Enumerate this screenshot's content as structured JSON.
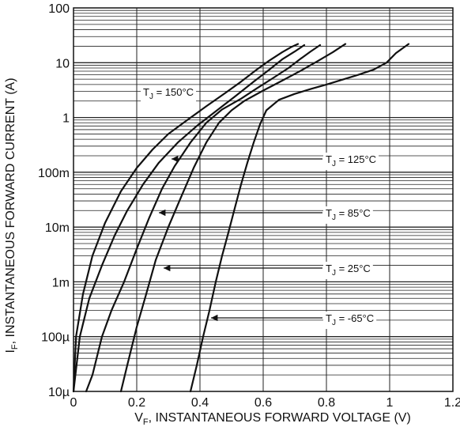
{
  "chart_data": {
    "type": "line",
    "xlabel": {
      "main": "V",
      "sub": "F",
      "rest": ", INSTANTANEOUS FORWARD VOLTAGE (V)"
    },
    "ylabel": {
      "main": "I",
      "sub": "F",
      "rest": ", INSTANTANEOUS FORWARD CURRENT (A)"
    },
    "xlim": [
      0,
      1.2
    ],
    "ylim": [
      1e-05,
      100
    ],
    "yscale": "log",
    "grid": true,
    "x_ticks": [
      {
        "value": 0,
        "label": "0"
      },
      {
        "value": 0.2,
        "label": "0.2"
      },
      {
        "value": 0.4,
        "label": "0.4"
      },
      {
        "value": 0.6,
        "label": "0.6"
      },
      {
        "value": 0.8,
        "label": "0.8"
      },
      {
        "value": 1.0,
        "label": "1"
      },
      {
        "value": 1.2,
        "label": "1.2"
      }
    ],
    "y_ticks": [
      {
        "value": 100,
        "label": "100"
      },
      {
        "value": 10,
        "label": "10"
      },
      {
        "value": 1,
        "label": "1"
      },
      {
        "value": 0.1,
        "label": "100m"
      },
      {
        "value": 0.01,
        "label": "10m"
      },
      {
        "value": 0.001,
        "label": "1m"
      },
      {
        "value": 0.0001,
        "label": "100µ"
      },
      {
        "value": 1e-05,
        "label": "10µ"
      }
    ],
    "series": [
      {
        "name": "TJ = 150°C",
        "label": {
          "base": "T",
          "sub": "J",
          "rest": " = 150°C"
        },
        "color": "#111111",
        "x": [
          0.0,
          0.008,
          0.03,
          0.06,
          0.1,
          0.15,
          0.2,
          0.25,
          0.3,
          0.36,
          0.42,
          0.48,
          0.53,
          0.58,
          0.62,
          0.66,
          0.69,
          0.71
        ],
        "y": [
          1e-05,
          0.0001,
          0.0006,
          0.003,
          0.012,
          0.045,
          0.12,
          0.26,
          0.5,
          0.9,
          1.6,
          2.8,
          4.5,
          7.5,
          11,
          15.5,
          19.5,
          22
        ]
      },
      {
        "name": "TJ = 125°C",
        "label": {
          "base": "T",
          "sub": "J",
          "rest": " = 125°C"
        },
        "color": "#111111",
        "x": [
          0.0,
          0.02,
          0.05,
          0.09,
          0.13,
          0.17,
          0.22,
          0.27,
          0.33,
          0.39,
          0.45,
          0.51,
          0.57,
          0.62,
          0.66,
          0.7,
          0.73
        ],
        "y": [
          1e-05,
          0.0001,
          0.0005,
          0.002,
          0.007,
          0.02,
          0.06,
          0.15,
          0.35,
          0.7,
          1.3,
          2.4,
          4.5,
          7.5,
          11.5,
          16,
          21
        ]
      },
      {
        "name": "TJ = 85°C",
        "label": {
          "base": "T",
          "sub": "J",
          "rest": " = 85°C"
        },
        "color": "#111111",
        "x": [
          0.04,
          0.06,
          0.09,
          0.12,
          0.16,
          0.2,
          0.24,
          0.28,
          0.32,
          0.37,
          0.42,
          0.47,
          0.53,
          0.58,
          0.63,
          0.68,
          0.72,
          0.75,
          0.78
        ],
        "y": [
          1e-05,
          2e-05,
          0.0001,
          0.0003,
          0.001,
          0.004,
          0.015,
          0.05,
          0.13,
          0.35,
          0.8,
          1.4,
          2.2,
          3.4,
          5.2,
          8.0,
          12,
          16,
          21
        ]
      },
      {
        "name": "TJ = 25°C",
        "label": {
          "base": "T",
          "sub": "J",
          "rest": " = 25°C"
        },
        "color": "#111111",
        "x": [
          0.15,
          0.17,
          0.2,
          0.23,
          0.26,
          0.3,
          0.34,
          0.38,
          0.42,
          0.46,
          0.5,
          0.54,
          0.6,
          0.66,
          0.72,
          0.77,
          0.82,
          0.86
        ],
        "y": [
          1e-05,
          3e-05,
          0.00015,
          0.0006,
          0.0025,
          0.01,
          0.035,
          0.12,
          0.35,
          0.8,
          1.35,
          2.0,
          3.1,
          4.7,
          7.2,
          10.5,
          15.5,
          22
        ]
      },
      {
        "name": "TJ = -65°C",
        "label": {
          "base": "T",
          "sub": "J",
          "rest": " = -65°C"
        },
        "color": "#111111",
        "x": [
          0.37,
          0.39,
          0.41,
          0.43,
          0.45,
          0.47,
          0.49,
          0.51,
          0.53,
          0.55,
          0.57,
          0.59,
          0.61,
          0.65,
          0.7,
          0.75,
          0.8,
          0.85,
          0.9,
          0.95,
          0.99,
          1.02,
          1.06
        ],
        "y": [
          1e-05,
          3e-05,
          0.0001,
          0.0003,
          0.001,
          0.003,
          0.008,
          0.022,
          0.06,
          0.15,
          0.35,
          0.75,
          1.35,
          2.1,
          2.7,
          3.3,
          4.0,
          4.9,
          6.0,
          7.5,
          10,
          15,
          22
        ]
      }
    ],
    "annotations": [
      {
        "series": 0,
        "text": {
          "base": "T",
          "sub": "J",
          "rest": " = 150°C"
        }
      },
      {
        "series": 1,
        "text": {
          "base": "T",
          "sub": "J",
          "rest": " = 125°C"
        },
        "arrow_to": [
          0.31,
          0.04
        ]
      },
      {
        "series": 2,
        "text": {
          "base": "T",
          "sub": "J",
          "rest": " = 85°C"
        },
        "arrow_to": [
          0.27,
          0.012
        ]
      },
      {
        "series": 3,
        "text": {
          "base": "T",
          "sub": "J",
          "rest": " = 25°C"
        },
        "arrow_to": [
          0.285,
          0.0011
        ]
      },
      {
        "series": 4,
        "text": {
          "base": "T",
          "sub": "J",
          "rest": " = -65°C"
        },
        "arrow_to": [
          0.435,
          0.00014
        ]
      }
    ]
  }
}
